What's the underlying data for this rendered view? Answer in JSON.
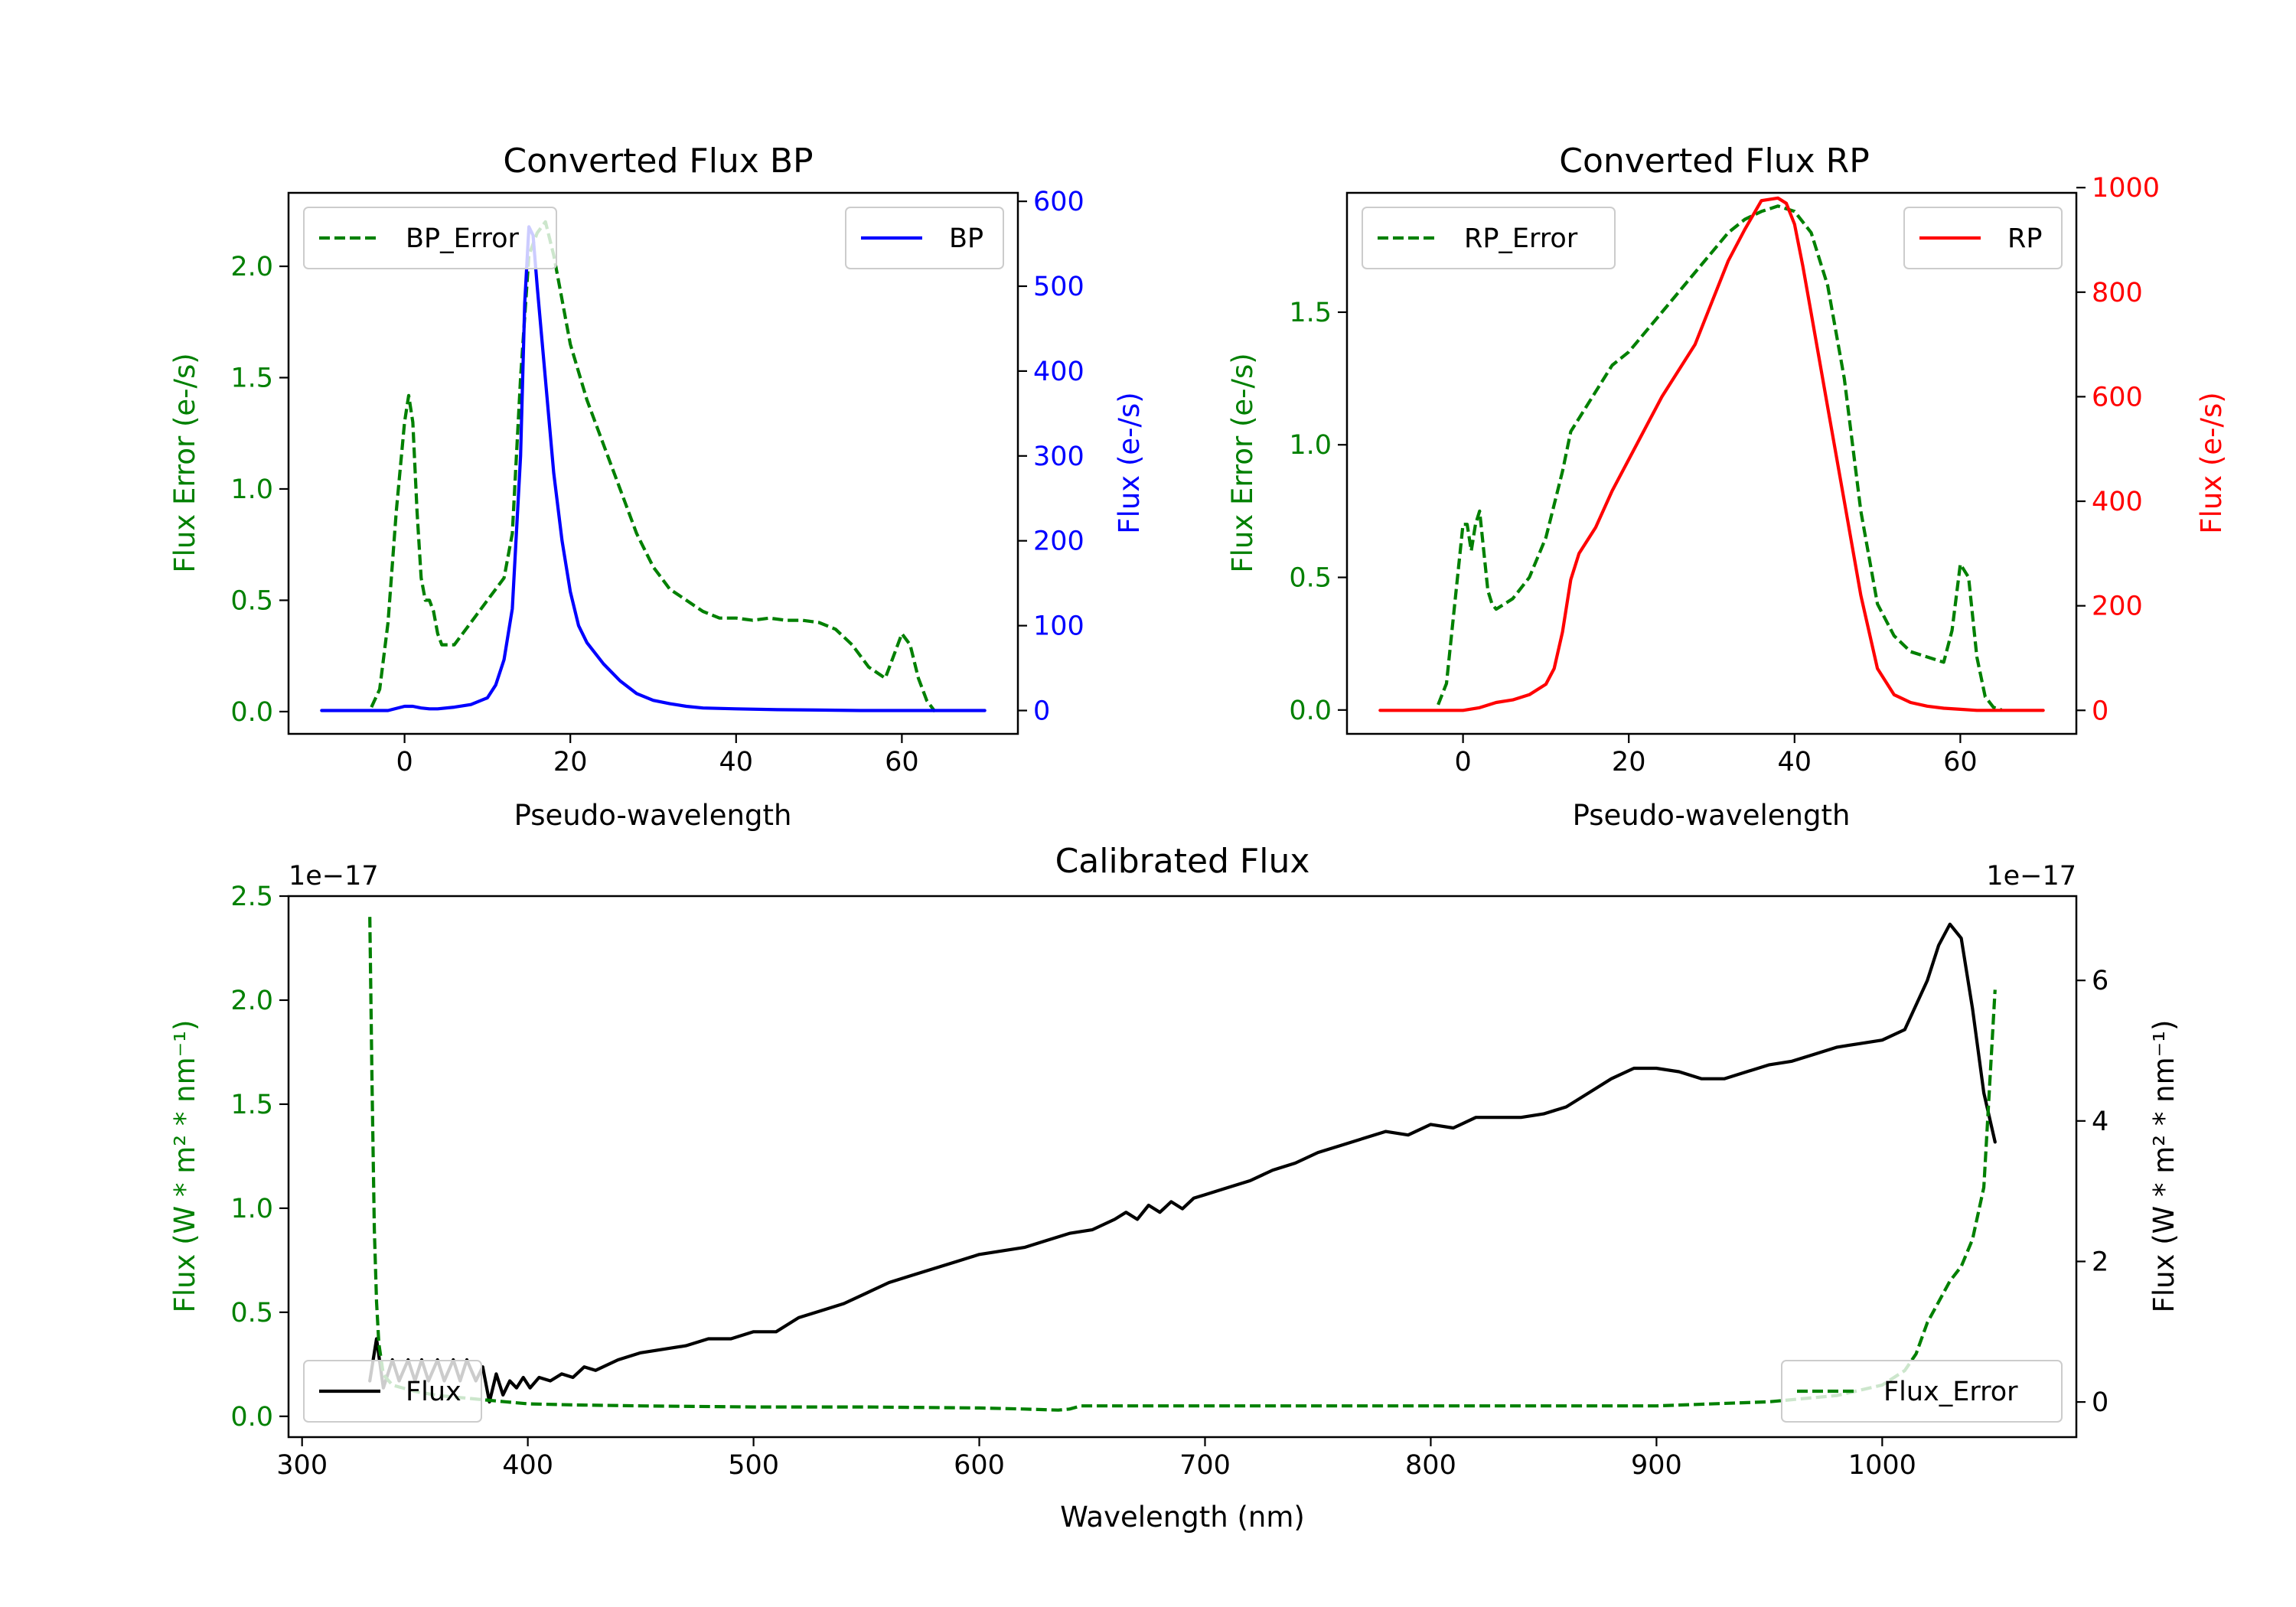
{
  "figure": {
    "bp_title": "Converted Flux BP",
    "rp_title": "Converted Flux RP",
    "cal_title": "Calibrated Flux"
  },
  "colors": {
    "error": "#008000",
    "bp": "#0000ff",
    "rp": "#ff0000",
    "flux": "#000000"
  },
  "chart_data": [
    {
      "type": "line",
      "title": "Converted Flux BP",
      "xlabel": "Pseudo-wavelength",
      "ylabel_left": "Flux Error (e-/s)",
      "ylabel_right": "Flux (e-/s)",
      "xlim": [
        -14,
        74
      ],
      "ylim_left": [
        -0.1,
        2.33
      ],
      "ylim_right": [
        -27.5,
        610
      ],
      "xticks": [
        0,
        20,
        40,
        60
      ],
      "yticks_left": [
        "0.0",
        "0.5",
        "1.0",
        "1.5",
        "2.0"
      ],
      "yticks_right": [
        "0",
        "100",
        "200",
        "300",
        "400",
        "500",
        "600"
      ],
      "legend_left": "BP_Error",
      "legend_right": "BP",
      "series": [
        {
          "name": "BP_Error",
          "axis": "left",
          "style": "dashed",
          "x": [
            -4,
            -3,
            -2,
            -1,
            0,
            0.5,
            1,
            1.5,
            2,
            2.5,
            3,
            3.5,
            4,
            4.5,
            5,
            6,
            7,
            8,
            10,
            12,
            13,
            14,
            15,
            16,
            17,
            18,
            19,
            20,
            22,
            24,
            26,
            28,
            30,
            32,
            34,
            36,
            38,
            40,
            42,
            44,
            46,
            48,
            50,
            52,
            54,
            56,
            58,
            59,
            60,
            61,
            62,
            63,
            64
          ],
          "y": [
            0.02,
            0.1,
            0.4,
            0.9,
            1.3,
            1.42,
            1.3,
            0.9,
            0.6,
            0.5,
            0.5,
            0.45,
            0.35,
            0.3,
            0.3,
            0.3,
            0.35,
            0.4,
            0.5,
            0.6,
            0.8,
            1.5,
            2.05,
            2.15,
            2.2,
            2.05,
            1.85,
            1.65,
            1.4,
            1.2,
            1.0,
            0.8,
            0.65,
            0.55,
            0.5,
            0.45,
            0.42,
            0.42,
            0.41,
            0.42,
            0.41,
            0.41,
            0.4,
            0.37,
            0.3,
            0.2,
            0.15,
            0.25,
            0.35,
            0.3,
            0.15,
            0.05,
            0.0
          ]
        },
        {
          "name": "BP",
          "axis": "right",
          "style": "solid",
          "x": [
            -10,
            -6,
            -4,
            -2,
            0,
            1,
            2,
            3,
            4,
            6,
            8,
            10,
            11,
            12,
            13,
            14,
            14.5,
            15,
            15.5,
            16,
            17,
            18,
            19,
            20,
            21,
            22,
            24,
            26,
            28,
            30,
            32,
            34,
            36,
            40,
            45,
            50,
            55,
            60,
            65,
            70
          ],
          "y": [
            0,
            0,
            0,
            0,
            5,
            5,
            3,
            2,
            2,
            4,
            7,
            15,
            30,
            60,
            120,
            300,
            480,
            570,
            560,
            500,
            390,
            280,
            200,
            140,
            100,
            80,
            55,
            35,
            20,
            12,
            8,
            5,
            3,
            2,
            1,
            0.5,
            0,
            0,
            0,
            0
          ]
        }
      ]
    },
    {
      "type": "line",
      "title": "Converted Flux RP",
      "xlabel": "Pseudo-wavelength",
      "ylabel_left": "Flux Error (e-/s)",
      "ylabel_right": "Flux (e-/s)",
      "xlim": [
        -14,
        74
      ],
      "ylim_left": [
        -0.09,
        1.95
      ],
      "ylim_right": [
        -45,
        990
      ],
      "xticks": [
        0,
        20,
        40,
        60
      ],
      "yticks_left": [
        "0.0",
        "0.5",
        "1.0",
        "1.5"
      ],
      "yticks_right": [
        "0",
        "200",
        "400",
        "600",
        "800",
        "1000"
      ],
      "legend_left": "RP_Error",
      "legend_right": "RP",
      "series": [
        {
          "name": "RP_Error",
          "axis": "left",
          "style": "dashed",
          "x": [
            -3,
            -2,
            -1,
            0,
            0.5,
            1,
            1.5,
            2,
            2.5,
            3,
            3.5,
            4,
            5,
            6,
            8,
            10,
            12,
            13,
            14,
            16,
            18,
            20,
            24,
            28,
            32,
            34,
            36,
            38,
            40,
            42,
            44,
            46,
            48,
            50,
            52,
            54,
            56,
            58,
            59,
            60,
            61,
            62,
            63,
            64,
            65
          ],
          "y": [
            0.02,
            0.1,
            0.4,
            0.7,
            0.7,
            0.6,
            0.7,
            0.75,
            0.6,
            0.45,
            0.4,
            0.38,
            0.4,
            0.42,
            0.5,
            0.65,
            0.9,
            1.05,
            1.1,
            1.2,
            1.3,
            1.35,
            1.5,
            1.65,
            1.8,
            1.85,
            1.88,
            1.9,
            1.88,
            1.8,
            1.6,
            1.25,
            0.75,
            0.4,
            0.28,
            0.22,
            0.2,
            0.18,
            0.3,
            0.55,
            0.5,
            0.2,
            0.05,
            0.01,
            0.0
          ]
        },
        {
          "name": "RP",
          "axis": "right",
          "style": "solid",
          "x": [
            -10,
            -4,
            0,
            2,
            4,
            6,
            8,
            10,
            11,
            12,
            13,
            14,
            16,
            18,
            20,
            24,
            28,
            30,
            32,
            34,
            36,
            38,
            39,
            40,
            41,
            42,
            44,
            46,
            48,
            50,
            52,
            54,
            56,
            58,
            60,
            62,
            65,
            70
          ],
          "y": [
            0,
            0,
            0,
            5,
            15,
            20,
            30,
            50,
            80,
            150,
            250,
            300,
            350,
            420,
            480,
            600,
            700,
            780,
            860,
            920,
            975,
            980,
            970,
            930,
            850,
            760,
            580,
            400,
            220,
            80,
            30,
            15,
            8,
            4,
            2,
            0,
            0,
            0
          ]
        }
      ]
    },
    {
      "type": "line",
      "title": "Calibrated Flux",
      "xlabel": "Wavelength (nm)",
      "ylabel_left": "Flux (W * m² * nm⁻¹)",
      "ylabel_right": "Flux (W * m² * nm⁻¹)",
      "left_axis_multiplier": "1e−17",
      "right_axis_multiplier": "1e−17",
      "xlim": [
        294,
        1086
      ],
      "ylim_left": [
        -0.1,
        2.5
      ],
      "ylim_right": [
        -0.5,
        7.2
      ],
      "xticks": [
        300,
        400,
        500,
        600,
        700,
        800,
        900,
        1000
      ],
      "yticks_left": [
        "0.0",
        "0.5",
        "1.0",
        "1.5",
        "2.0",
        "2.5"
      ],
      "yticks_right": [
        "0",
        "2",
        "4",
        "6"
      ],
      "legend_left": "Flux",
      "legend_right": "Flux_Error",
      "series": [
        {
          "name": "Flux",
          "axis": "right",
          "style": "solid",
          "x": [
            330,
            333,
            336,
            340,
            343,
            347,
            350,
            353,
            356,
            360,
            363,
            367,
            370,
            373,
            377,
            380,
            383,
            386,
            389,
            392,
            395,
            398,
            401,
            405,
            410,
            415,
            420,
            425,
            430,
            440,
            450,
            460,
            470,
            480,
            490,
            500,
            510,
            520,
            530,
            540,
            550,
            560,
            570,
            580,
            590,
            600,
            610,
            620,
            630,
            640,
            650,
            660,
            665,
            670,
            675,
            680,
            685,
            690,
            695,
            700,
            710,
            720,
            730,
            740,
            750,
            760,
            770,
            780,
            790,
            800,
            810,
            820,
            830,
            840,
            850,
            860,
            870,
            880,
            890,
            900,
            910,
            920,
            930,
            940,
            950,
            960,
            970,
            980,
            990,
            1000,
            1010,
            1020,
            1025,
            1030,
            1035,
            1040,
            1045,
            1050
          ],
          "y": [
            0.3,
            0.9,
            0.2,
            0.6,
            0.3,
            0.6,
            0.3,
            0.6,
            0.3,
            0.6,
            0.3,
            0.6,
            0.3,
            0.6,
            0.3,
            0.5,
            0.0,
            0.4,
            0.1,
            0.3,
            0.2,
            0.35,
            0.2,
            0.35,
            0.3,
            0.4,
            0.35,
            0.5,
            0.45,
            0.6,
            0.7,
            0.75,
            0.8,
            0.9,
            0.9,
            1.0,
            1.0,
            1.2,
            1.3,
            1.4,
            1.55,
            1.7,
            1.8,
            1.9,
            2.0,
            2.1,
            2.15,
            2.2,
            2.3,
            2.4,
            2.45,
            2.6,
            2.7,
            2.6,
            2.8,
            2.7,
            2.85,
            2.75,
            2.9,
            2.95,
            3.05,
            3.15,
            3.3,
            3.4,
            3.55,
            3.65,
            3.75,
            3.85,
            3.8,
            3.95,
            3.9,
            4.05,
            4.05,
            4.05,
            4.1,
            4.2,
            4.4,
            4.6,
            4.75,
            4.75,
            4.7,
            4.6,
            4.6,
            4.7,
            4.8,
            4.85,
            4.95,
            5.05,
            5.1,
            5.15,
            5.3,
            6.0,
            6.5,
            6.8,
            6.6,
            5.6,
            4.4,
            3.7
          ]
        },
        {
          "name": "Flux_Error",
          "axis": "left",
          "style": "dashed",
          "x": [
            330,
            331,
            332,
            333,
            334,
            336,
            340,
            350,
            360,
            370,
            380,
            390,
            400,
            420,
            450,
            500,
            550,
            600,
            620,
            635,
            640,
            645,
            660,
            700,
            800,
            900,
            950,
            980,
            1000,
            1010,
            1015,
            1020,
            1025,
            1030,
            1035,
            1040,
            1045,
            1050
          ],
          "y": [
            2.4,
            1.6,
            0.9,
            0.55,
            0.35,
            0.2,
            0.15,
            0.12,
            0.1,
            0.09,
            0.08,
            0.07,
            0.06,
            0.055,
            0.05,
            0.045,
            0.045,
            0.04,
            0.035,
            0.03,
            0.035,
            0.05,
            0.05,
            0.05,
            0.05,
            0.05,
            0.07,
            0.1,
            0.15,
            0.22,
            0.3,
            0.45,
            0.55,
            0.65,
            0.72,
            0.85,
            1.1,
            2.05
          ]
        }
      ]
    }
  ]
}
